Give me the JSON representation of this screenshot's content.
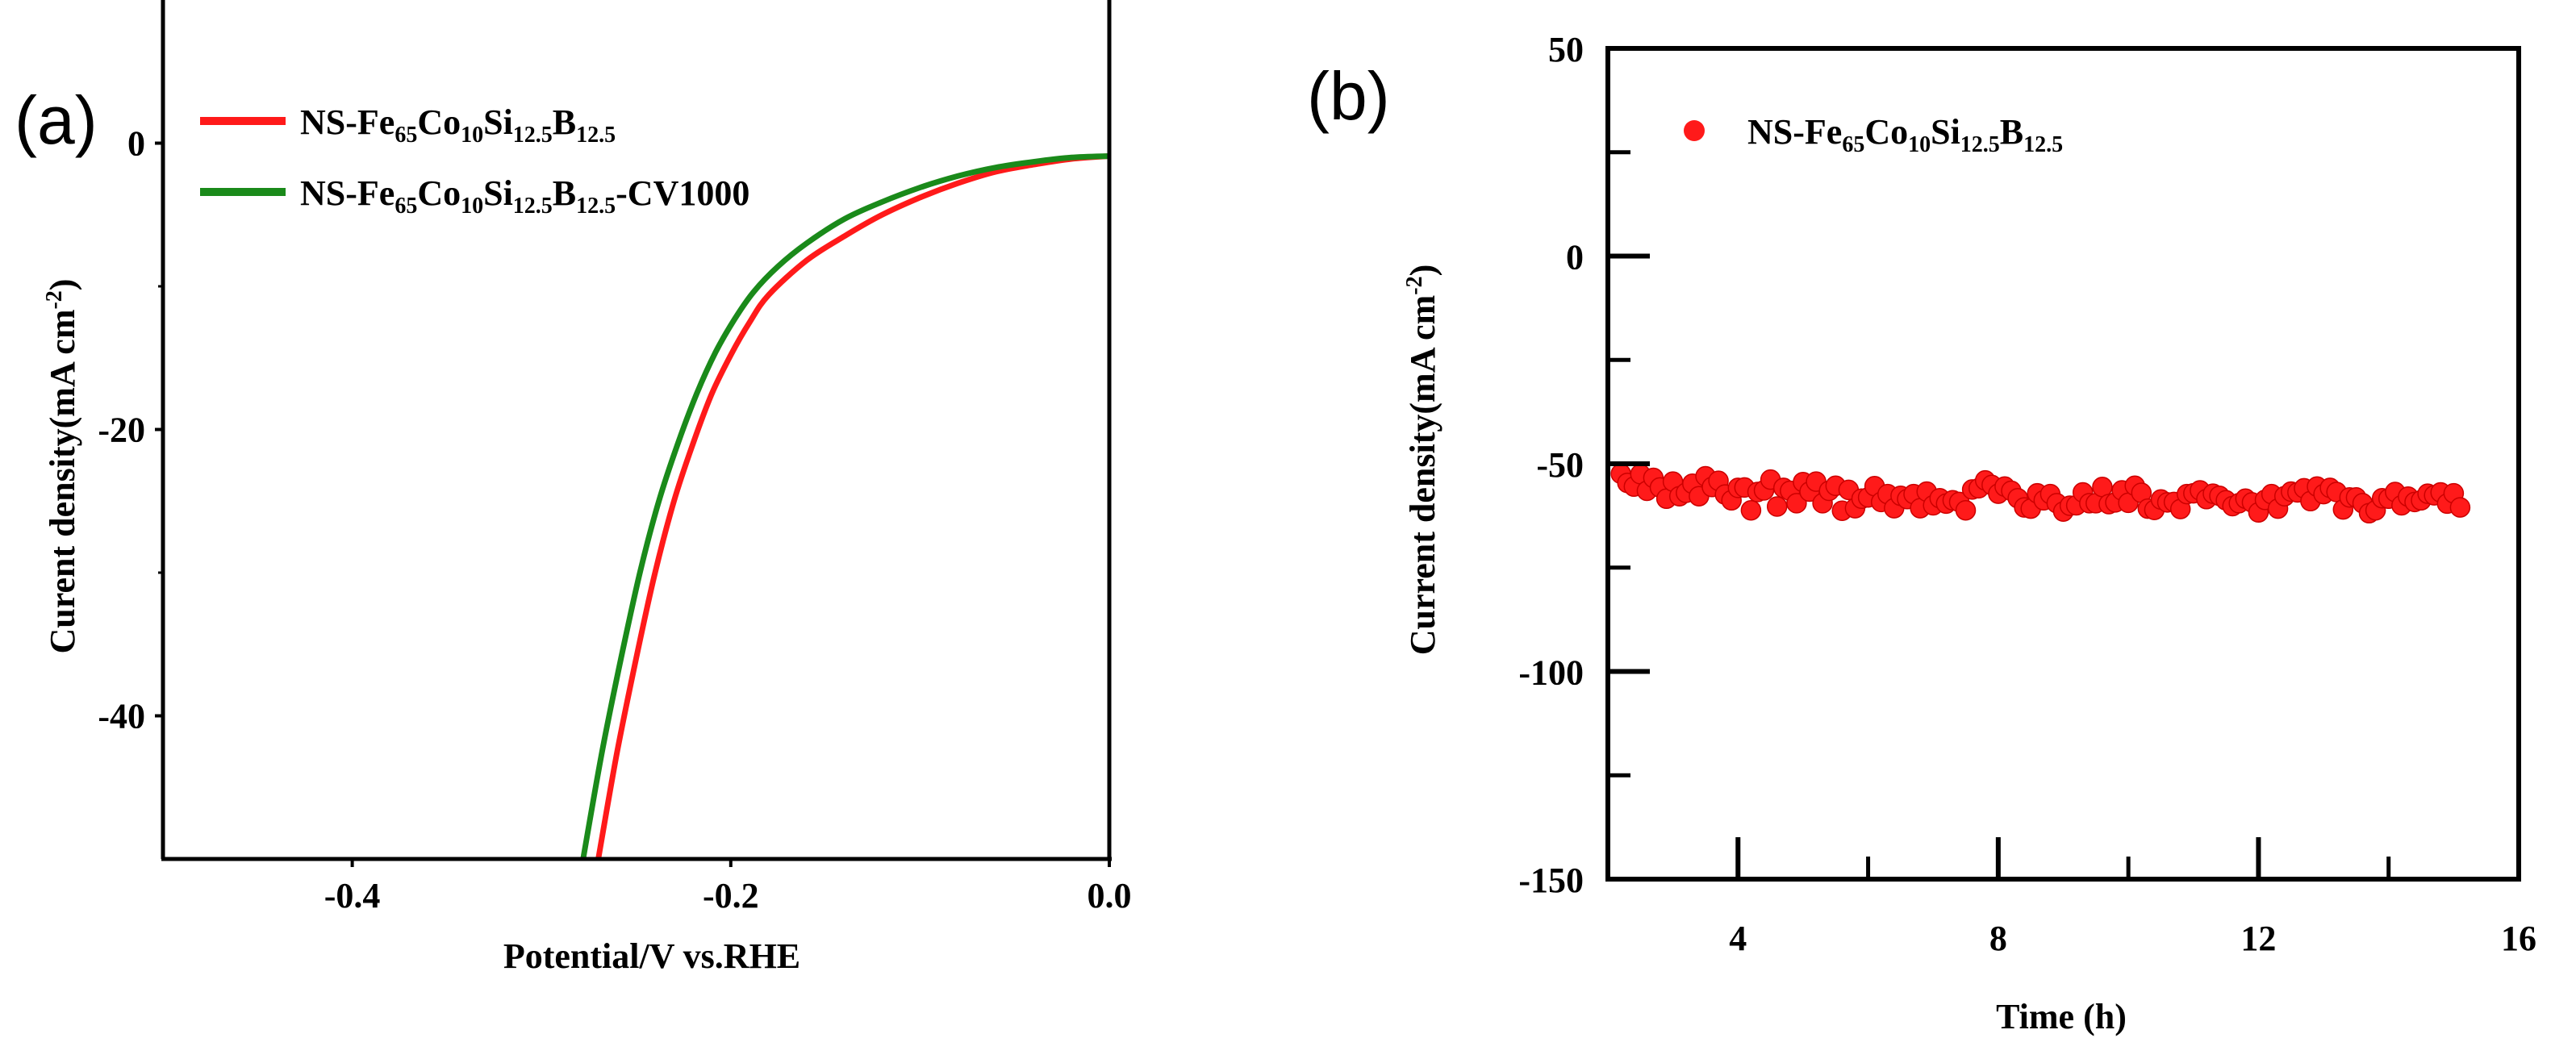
{
  "chart_data": [
    {
      "panel_label": "(a)",
      "type": "line",
      "xlabel": "Potential/V vs.RHE",
      "ylabel_main": "Curent density",
      "ylabel_units": "(mA cm",
      "ylabel_exp": "-2",
      "ylabel_close": ")",
      "xlim": [
        -0.5,
        0.0
      ],
      "ylim": [
        -50,
        10
      ],
      "x_ticks": [
        -0.4,
        -0.2,
        0.0
      ],
      "x_tick_labels": [
        "-0.4",
        "-0.2",
        "0.0"
      ],
      "y_ticks": [
        0,
        -20,
        -40
      ],
      "y_tick_labels": [
        "0",
        "-20",
        "-40"
      ],
      "legend_position": "top-left",
      "series": [
        {
          "name": "NS-Fe65Co10Si12.5B12.5",
          "color": "#ff1a1a",
          "x": [
            -0.27,
            -0.26,
            -0.25,
            -0.24,
            -0.23,
            -0.22,
            -0.21,
            -0.2,
            -0.19,
            -0.18,
            -0.16,
            -0.14,
            -0.12,
            -0.1,
            -0.08,
            -0.06,
            -0.04,
            -0.02,
            0.0
          ],
          "y": [
            -50,
            -42.5,
            -36,
            -30,
            -25,
            -21,
            -17.5,
            -14.8,
            -12.5,
            -10.6,
            -8.2,
            -6.5,
            -5.0,
            -3.8,
            -2.8,
            -2.0,
            -1.5,
            -1.1,
            -0.9
          ]
        },
        {
          "name": "NS-Fe65Co10Si12.5B12.5-CV1000",
          "color": "#1a8a1a",
          "x": [
            -0.278,
            -0.268,
            -0.258,
            -0.248,
            -0.238,
            -0.228,
            -0.218,
            -0.208,
            -0.198,
            -0.188,
            -0.175,
            -0.16,
            -0.14,
            -0.12,
            -0.1,
            -0.08,
            -0.06,
            -0.04,
            -0.02,
            0.0
          ],
          "y": [
            -50,
            -42.5,
            -36,
            -30,
            -25,
            -21,
            -17.5,
            -14.6,
            -12.3,
            -10.4,
            -8.6,
            -7.0,
            -5.3,
            -4.1,
            -3.1,
            -2.3,
            -1.7,
            -1.3,
            -1.0,
            -0.9
          ]
        }
      ],
      "legend": [
        {
          "base": "NS-Fe",
          "s1": "65",
          "m1": "Co",
          "s2": "10",
          "m2": "Si",
          "s3": "12.5",
          "m3": "B",
          "s4": "12.5",
          "suffix": ""
        },
        {
          "base": "NS-Fe",
          "s1": "65",
          "m1": "Co",
          "s2": "10",
          "m2": "Si",
          "s3": "12.5",
          "m3": "B",
          "s4": "12.5",
          "suffix": "-CV1000"
        }
      ]
    },
    {
      "panel_label": "(b)",
      "type": "scatter",
      "xlabel": "Time (h)",
      "ylabel_main": "Current density",
      "ylabel_units": "(mA cm",
      "ylabel_exp": "-2",
      "ylabel_close": ")",
      "xlim": [
        2.0,
        16.0
      ],
      "ylim": [
        -150,
        50
      ],
      "x_ticks": [
        4,
        8,
        12,
        16
      ],
      "x_tick_labels": [
        "4",
        "8",
        "12",
        "16"
      ],
      "y_ticks": [
        50,
        0,
        -50,
        -100,
        -150
      ],
      "y_tick_labels": [
        "50",
        "0",
        "-50",
        "-100",
        "-150"
      ],
      "legend_position": "top-left",
      "series": [
        {
          "name": "NS-Fe65Co10Si12.5B12.5",
          "color": "#ff1a1a",
          "x_start": 2.2,
          "x_step": 0.1,
          "y": [
            -52.4,
            -54.6,
            -55.5,
            -52.5,
            -56.5,
            -53.4,
            -55.7,
            -58.4,
            -54.3,
            -57.8,
            -57.0,
            -54.8,
            -57.8,
            -53.0,
            -55.6,
            -54.1,
            -57.4,
            -58.8,
            -55.8,
            -55.7,
            -61.2,
            -56.8,
            -56.4,
            -53.8,
            -60.3,
            -55.8,
            -56.5,
            -59.5,
            -54.4,
            -56.7,
            -54.3,
            -59.5,
            -56.5,
            -55.3,
            -61.3,
            -56.3,
            -60.7,
            -58.4,
            -58.1,
            -55.4,
            -59.2,
            -57.3,
            -60.7,
            -57.7,
            -58.5,
            -57.3,
            -60.7,
            -56.7,
            -60.0,
            -58.3,
            -59.6,
            -58.8,
            -59.2,
            -61.2,
            -56.2,
            -55.9,
            -54.0,
            -55.1,
            -57.2,
            -55.5,
            -56.5,
            -58.3,
            -60.5,
            -60.8,
            -57.1,
            -58.8,
            -57.3,
            -59.5,
            -61.5,
            -60.1,
            -60.0,
            -56.9,
            -59.5,
            -59.5,
            -55.6,
            -59.7,
            -59.3,
            -56.4,
            -59.4,
            -55.3,
            -57.0,
            -60.8,
            -61.1,
            -58.6,
            -59.3,
            -59.2,
            -60.9,
            -57.3,
            -57.1,
            -56.4,
            -58.5,
            -57.2,
            -57.7,
            -58.8,
            -60.2,
            -59.5,
            -58.4,
            -59.3,
            -61.7,
            -58.7,
            -57.3,
            -60.8,
            -57.8,
            -56.7,
            -56.9,
            -55.9,
            -59.0,
            -55.5,
            -57.3,
            -55.8,
            -56.8,
            -61.0,
            -58.1,
            -58.1,
            -59.5,
            -61.9,
            -61.2,
            -58.3,
            -58.4,
            -56.8,
            -60.0,
            -57.9,
            -59.2,
            -58.8,
            -57.2,
            -57.6,
            -56.9,
            -59.6,
            -57.1,
            -60.5
          ]
        }
      ],
      "legend": [
        {
          "base": "NS-Fe",
          "s1": "65",
          "m1": "Co",
          "s2": "10",
          "m2": "Si",
          "s3": "12.5",
          "m3": "B",
          "s4": "12.5",
          "suffix": ""
        }
      ]
    }
  ]
}
